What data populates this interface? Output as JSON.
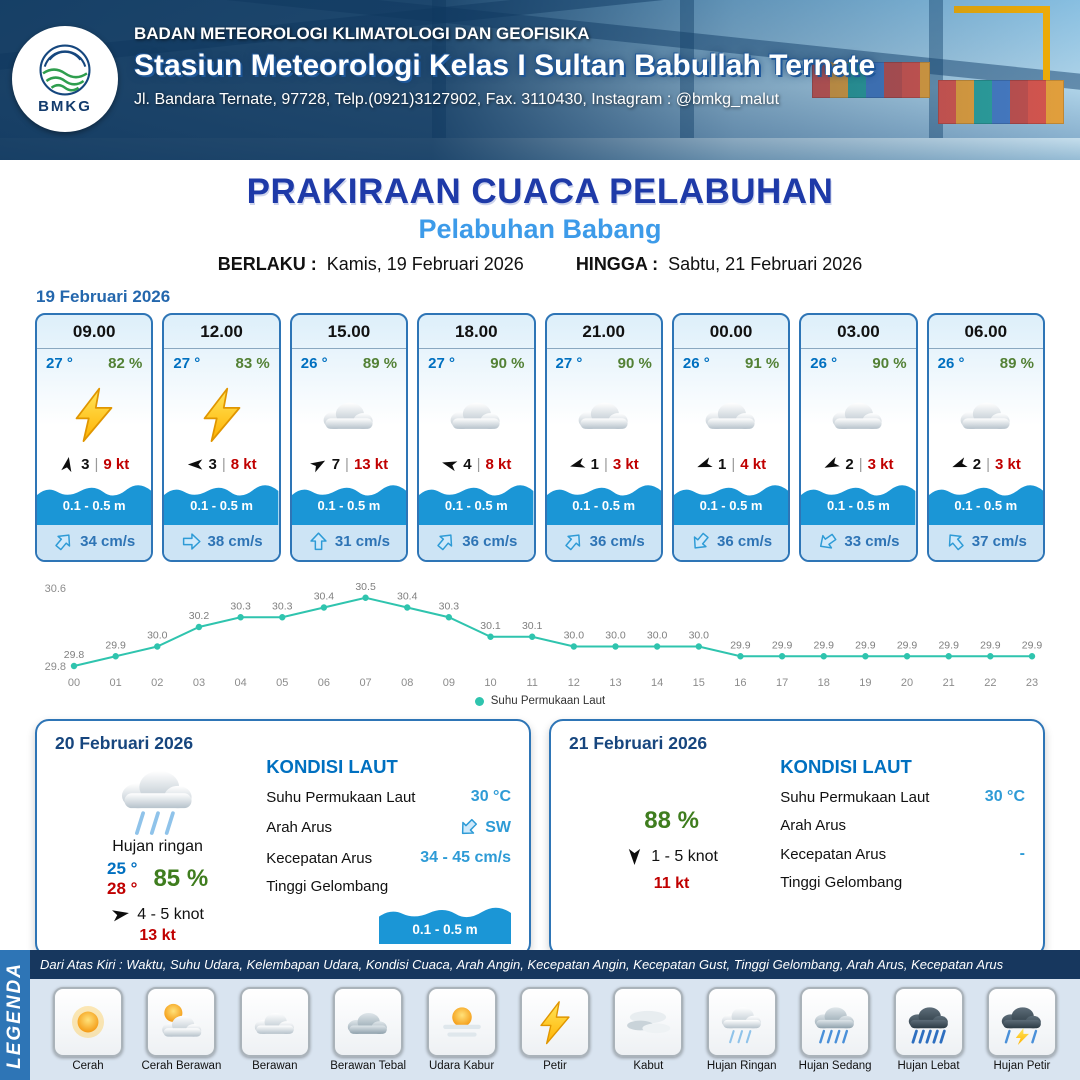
{
  "ui": {
    "divider": "|"
  },
  "header": {
    "agency": "BADAN METEOROLOGI KLIMATOLOGI DAN GEOFISIKA",
    "station": "Stasiun Meteorologi Kelas I Sultan Babullah Ternate",
    "address": "Jl. Bandara Ternate, 97728, Telp.(0921)3127902, Fax. 3110430, Instagram : @bmkg_malut",
    "logo": "BMKG"
  },
  "title": {
    "main": "PRAKIRAAN CUACA PELABUHAN",
    "subtitle": "Pelabuhan Babang",
    "valid_from_label": "BERLAKU :",
    "valid_from": "Kamis, 19 Februari 2026",
    "valid_to_label": "HINGGA :",
    "valid_to": "Sabtu, 21 Februari 2026"
  },
  "forecast": {
    "date": "19 Februari 2026",
    "cards": [
      {
        "time": "09.00",
        "temp": "27 °",
        "humidity": "82 %",
        "icon": "bolt",
        "wind_dir_deg": 10,
        "wind_force": "3",
        "wind_speed": "9 kt",
        "wave_height": "0.1 - 0.5 m",
        "current_dir_deg": 40,
        "current_speed": "34 cm/s"
      },
      {
        "time": "12.00",
        "temp": "27 °",
        "humidity": "83 %",
        "icon": "bolt",
        "wind_dir_deg": 270,
        "wind_force": "3",
        "wind_speed": "8 kt",
        "wave_height": "0.1 - 0.5 m",
        "current_dir_deg": 90,
        "current_speed": "38 cm/s"
      },
      {
        "time": "15.00",
        "temp": "26 °",
        "humidity": "89 %",
        "icon": "cloud",
        "wind_dir_deg": 60,
        "wind_force": "7",
        "wind_speed": "13 kt",
        "wave_height": "0.1 - 0.5 m",
        "current_dir_deg": 0,
        "current_speed": "31 cm/s"
      },
      {
        "time": "18.00",
        "temp": "27 °",
        "humidity": "90 %",
        "icon": "cloud",
        "wind_dir_deg": 285,
        "wind_force": "4",
        "wind_speed": "8 kt",
        "wave_height": "0.1 - 0.5 m",
        "current_dir_deg": 40,
        "current_speed": "36 cm/s"
      },
      {
        "time": "21.00",
        "temp": "27 °",
        "humidity": "90 %",
        "icon": "cloud",
        "wind_dir_deg": 255,
        "wind_force": "1",
        "wind_speed": "3 kt",
        "wave_height": "0.1 - 0.5 m",
        "current_dir_deg": 40,
        "current_speed": "36 cm/s"
      },
      {
        "time": "00.00",
        "temp": "26 °",
        "humidity": "91 %",
        "icon": "cloud",
        "wind_dir_deg": 250,
        "wind_force": "1",
        "wind_speed": "4 kt",
        "wave_height": "0.1 - 0.5 m",
        "current_dir_deg": 220,
        "current_speed": "36 cm/s"
      },
      {
        "time": "03.00",
        "temp": "26 °",
        "humidity": "90 %",
        "icon": "cloud",
        "wind_dir_deg": 245,
        "wind_force": "2",
        "wind_speed": "3 kt",
        "wave_height": "0.1 - 0.5 m",
        "current_dir_deg": 235,
        "current_speed": "33 cm/s"
      },
      {
        "time": "06.00",
        "temp": "26 °",
        "humidity": "89 %",
        "icon": "cloud",
        "wind_dir_deg": 250,
        "wind_force": "2",
        "wind_speed": "3 kt",
        "wave_height": "0.1 - 0.5 m",
        "current_dir_deg": 320,
        "current_speed": "37 cm/s"
      }
    ]
  },
  "chart_data": {
    "type": "line",
    "title": "",
    "legend": "Suhu Permukaan Laut",
    "xlabel": "",
    "ylabel": "",
    "ylim": [
      29.8,
      30.6
    ],
    "color": "#2fc4ae",
    "x": [
      "00",
      "01",
      "02",
      "03",
      "04",
      "05",
      "06",
      "07",
      "08",
      "09",
      "10",
      "11",
      "12",
      "13",
      "14",
      "15",
      "16",
      "17",
      "18",
      "19",
      "20",
      "21",
      "22",
      "23"
    ],
    "values": [
      29.8,
      29.9,
      30.0,
      30.2,
      30.3,
      30.3,
      30.4,
      30.5,
      30.4,
      30.3,
      30.1,
      30.1,
      30.0,
      30.0,
      30.0,
      30.0,
      29.9,
      29.9,
      29.9,
      29.9,
      29.9,
      29.9,
      29.9,
      29.9
    ]
  },
  "panels": [
    {
      "date": "20 Februari 2026",
      "icon": "rain-light",
      "condition": "Hujan ringan",
      "temp_min": "25 °",
      "temp_max": "28 °",
      "humidity": "85 %",
      "wind_dir_deg": 80,
      "wind_range": "4 - 5 knot",
      "gust": "13 kt",
      "sea": {
        "heading": "KONDISI LAUT",
        "sst_label": "Suhu Permukaan Laut",
        "sst": "30 °C",
        "current_dir_label": "Arah Arus",
        "current_dir": "SW",
        "current_dir_deg": 225,
        "current_speed_label": "Kecepatan Arus",
        "current_speed": "34 - 45 cm/s",
        "wave_label": "Tinggi Gelombang",
        "wave": "0.1 - 0.5 m"
      }
    },
    {
      "date": "21 Februari 2026",
      "humidity": "88 %",
      "wind_dir_deg": 180,
      "wind_range": "1 - 5 knot",
      "gust": "11 kt",
      "sea": {
        "heading": "KONDISI LAUT",
        "sst_label": "Suhu Permukaan Laut",
        "sst": "30 °C",
        "current_dir_label": "Arah Arus",
        "current_dir": "",
        "current_speed_label": "Kecepatan Arus",
        "current_speed": "-",
        "wave_label": "Tinggi Gelombang",
        "wave": ""
      }
    }
  ],
  "legend": {
    "title": "LEGENDA",
    "note": "Dari Atas Kiri : Waktu, Suhu Udara, Kelembapan Udara, Kondisi Cuaca, Arah Angin, Kecepatan Angin, Kecepatan Gust, Tinggi Gelombang, Arah Arus, Kecepatan Arus",
    "items": [
      {
        "label": "Cerah",
        "icon": "sun"
      },
      {
        "label": "Cerah Berawan",
        "icon": "sun-cloud"
      },
      {
        "label": "Berawan",
        "icon": "cloud"
      },
      {
        "label": "Berawan Tebal",
        "icon": "cloud-dark"
      },
      {
        "label": "Udara Kabur",
        "icon": "sun-haze"
      },
      {
        "label": "Petir",
        "icon": "bolt"
      },
      {
        "label": "Kabut",
        "icon": "fog"
      },
      {
        "label": "Hujan Ringan",
        "icon": "rain-light"
      },
      {
        "label": "Hujan Sedang",
        "icon": "rain-medium"
      },
      {
        "label": "Hujan Lebat",
        "icon": "rain-heavy"
      },
      {
        "label": "Hujan Petir",
        "icon": "rain-bolt"
      }
    ]
  },
  "colors": {
    "accent": "#2e75b6",
    "temperature": "#0070c0",
    "humidity": "#538135",
    "wind_speed": "#c00000",
    "wave": "#1b96d6",
    "title": "#1e3aa8",
    "subtitle": "#3d9be9"
  }
}
